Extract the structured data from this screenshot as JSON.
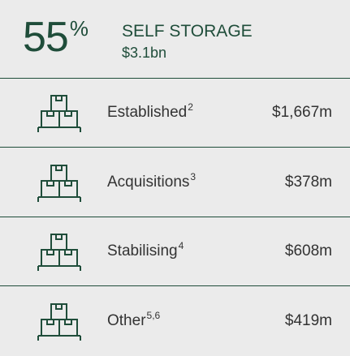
{
  "header": {
    "percent": "55",
    "percent_sign": "%",
    "title": "SELF STORAGE",
    "value": "$3.1bn"
  },
  "rows": [
    {
      "label": "Established",
      "note": "2",
      "value": "$1,667m"
    },
    {
      "label": "Acquisitions",
      "note": "3",
      "value": "$378m"
    },
    {
      "label": "Stabilising",
      "note": "4",
      "value": "$608m"
    },
    {
      "label": "Other",
      "note": "5,6",
      "value": "$419m"
    }
  ]
}
